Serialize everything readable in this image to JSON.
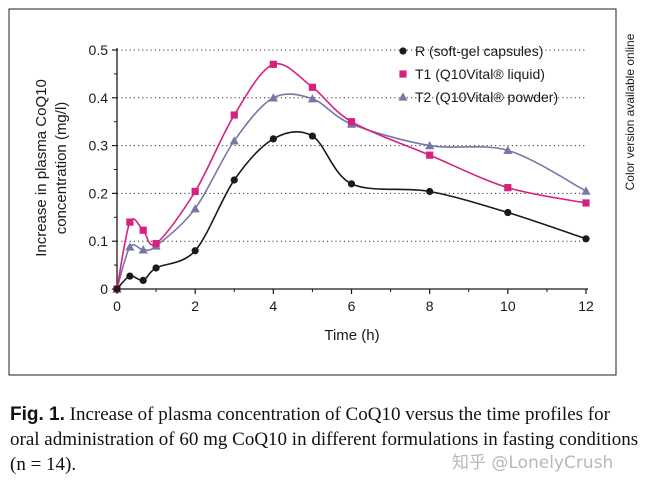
{
  "chart_data": {
    "type": "line",
    "xlabel": "Time (h)",
    "ylabel_line1": "Increase in plasma CoQ10",
    "ylabel_line2": "concentration (mg/l)",
    "xlim": [
      0,
      12
    ],
    "ylim": [
      0,
      0.5
    ],
    "x_ticks": [
      0,
      2,
      4,
      6,
      8,
      10,
      12
    ],
    "x_tick_labels": [
      "0",
      "2",
      "4",
      "6",
      "8",
      "10",
      "12"
    ],
    "y_ticks": [
      0,
      0.1,
      0.2,
      0.3,
      0.4,
      0.5
    ],
    "y_tick_labels": [
      "0",
      "0.1",
      "0.2",
      "0.3",
      "0.4",
      "0.5"
    ],
    "grid": "horizontal dotted",
    "legend_position": "top-right",
    "series": [
      {
        "name": "R (soft-gel capsules)",
        "marker": "circle",
        "color": "#1a1a1a",
        "x": [
          0,
          0.33,
          0.67,
          1,
          2,
          3,
          4,
          5,
          6,
          8,
          10,
          12
        ],
        "values": [
          0,
          0.027,
          0.018,
          0.044,
          0.08,
          0.228,
          0.314,
          0.32,
          0.22,
          0.204,
          0.16,
          0.105
        ]
      },
      {
        "name": "T1 (Q10Vital® liquid)",
        "marker": "square",
        "color": "#d6217f",
        "x": [
          0,
          0.33,
          0.67,
          1,
          2,
          3,
          4,
          5,
          6,
          8,
          10,
          12
        ],
        "values": [
          0,
          0.14,
          0.123,
          0.095,
          0.204,
          0.364,
          0.47,
          0.422,
          0.35,
          0.28,
          0.212,
          0.18
        ]
      },
      {
        "name": "T2 (Q10Vital® powder)",
        "marker": "triangle",
        "color": "#7777aa",
        "x": [
          0,
          0.33,
          0.67,
          1,
          2,
          3,
          4,
          5,
          6,
          8,
          10,
          12
        ],
        "values": [
          0,
          0.088,
          0.082,
          0.09,
          0.168,
          0.31,
          0.4,
          0.398,
          0.345,
          0.3,
          0.29,
          0.205
        ]
      }
    ]
  },
  "side_note": "Color version available online",
  "caption": {
    "label": "Fig. 1.",
    "text": " Increase of plasma concentration of CoQ10 versus the time profiles for oral administration of 60 mg CoQ10 in different formulations in fasting conditions (n = 14)."
  },
  "watermark": "知乎 @LonelyCrush"
}
